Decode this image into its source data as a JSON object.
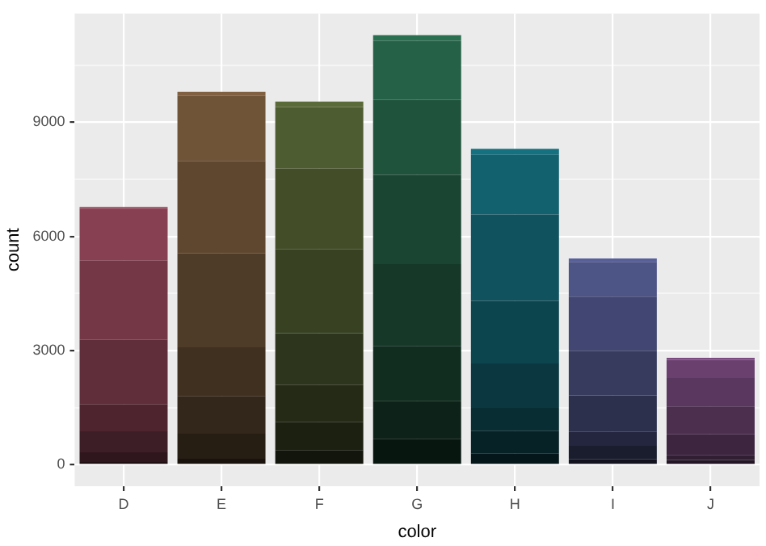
{
  "chart_data": {
    "type": "bar",
    "stacked": true,
    "xlabel": "color",
    "ylabel": "count",
    "categories": [
      "D",
      "E",
      "F",
      "G",
      "H",
      "I",
      "J"
    ],
    "ylim": [
      -565,
      11857
    ],
    "yticks": [
      0,
      {
        "value": 1500,
        "label": null
      },
      3000,
      {
        "value": 4500,
        "label": null
      },
      6000,
      {
        "value": 7500,
        "label": null
      },
      9000,
      {
        "value": 10500,
        "label": null
      }
    ],
    "grid": true,
    "legend": false,
    "series": [
      {
        "colors": [
          "#1f0f13",
          "#1a130d",
          "#12150b",
          "#081610",
          "#04161a",
          "#12131f",
          "#180f1a"
        ],
        "values": [
          73,
          158,
          385,
          681,
          299,
          143,
          51
        ]
      },
      {
        "colors": [
          "#2f161c",
          "#261d13",
          "#1b2011",
          "#0d2218",
          "#062226",
          "#1a1d2e",
          "#251626"
        ],
        "values": [
          252,
          656,
          734,
          999,
          585,
          355,
          74
        ]
      },
      {
        "colors": [
          "#3e1e26",
          "#33261a",
          "#242a16",
          "#112d20",
          "#082d33",
          "#23263e",
          "#311e33"
        ],
        "values": [
          553,
          991,
          975,
          1443,
          608,
          365,
          131
        ]
      },
      {
        "colors": [
          "#4e252f",
          "#403020",
          "#2d351c",
          "#153828",
          "#0b3840",
          "#2c304d",
          "#3d2540"
        ],
        "values": [
          705,
          1281,
          1364,
          2148,
          1169,
          962,
          542
        ]
      },
      {
        "colors": [
          "#602e3a",
          "#4f3c28",
          "#384223",
          "#1a4532",
          "#0d454f",
          "#373c5f",
          "#4c2e4f"
        ],
        "values": [
          1697,
          2470,
          2201,
          2347,
          1643,
          1169,
          731
        ]
      },
      {
        "colors": [
          "#733746",
          "#5f472f",
          "#434e29",
          "#1f533b",
          "#10535f",
          "#414772",
          "#5a375f"
        ],
        "values": [
          2083,
          2426,
          2131,
          1976,
          2275,
          1424,
          750
        ]
      },
      {
        "colors": [
          "#874052",
          "#6f5438",
          "#4e5c31",
          "#256146",
          "#12616f",
          "#4d5486",
          "#6a406f"
        ],
        "values": [
          1370,
          1713,
          1609,
          1548,
          1563,
          912,
          479
        ]
      },
      {
        "colors": [
          "#9b4a5e",
          "#806040",
          "#5a6a38",
          "#2a7050",
          "#157080",
          "#58609a",
          "#7a4a80"
        ],
        "values": [
          42,
          102,
          143,
          150,
          162,
          92,
          50
        ]
      }
    ]
  }
}
